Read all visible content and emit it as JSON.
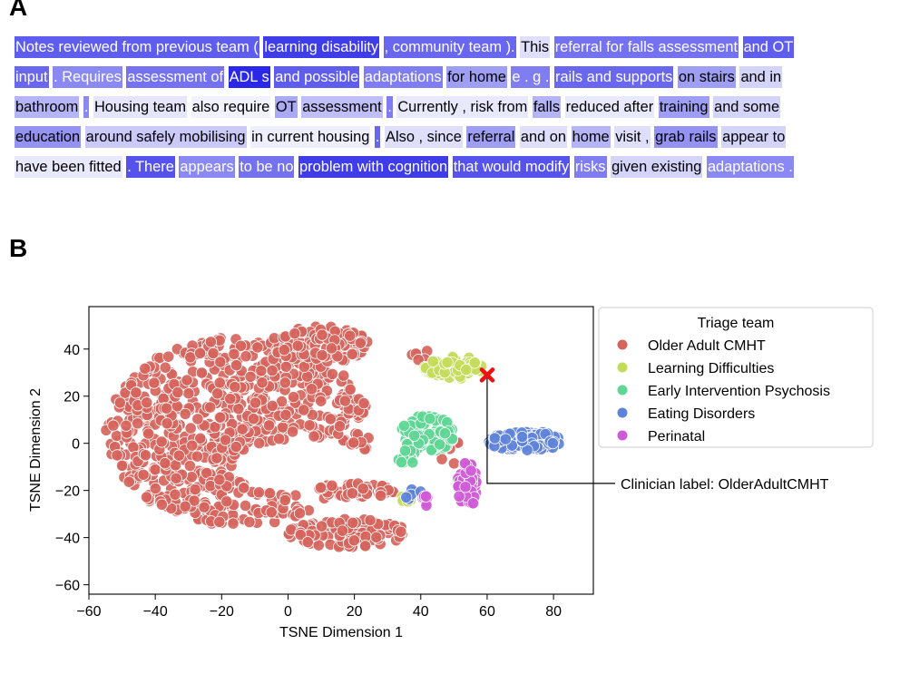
{
  "panel_a": {
    "letter": "A",
    "lines": [
      [
        {
          "t": "Notes reviewed from previous team (",
          "w": 0.75
        },
        {
          "t": "learning disability",
          "w": 0.9
        },
        {
          "t": ", community team ).",
          "w": 0.7
        },
        {
          "t": "This",
          "w": 0.15
        },
        {
          "t": "referral for falls assessment",
          "w": 0.65
        },
        {
          "t": "and OT",
          "w": 0.75
        }
      ],
      [
        {
          "t": "input",
          "w": 0.7
        },
        {
          "t": ". Requires",
          "w": 0.55
        },
        {
          "t": "assessment of",
          "w": 0.65
        },
        {
          "t": "ADL s",
          "w": 1.0
        },
        {
          "t": "and possible",
          "w": 0.75
        },
        {
          "t": "adaptations",
          "w": 0.6
        },
        {
          "t": "for home",
          "w": 0.45
        },
        {
          "t": "e . g .",
          "w": 0.6
        },
        {
          "t": "rails and supports",
          "w": 0.7
        },
        {
          "t": "on stairs",
          "w": 0.45
        },
        {
          "t": "and in",
          "w": 0.2
        }
      ],
      [
        {
          "t": "bathroom",
          "w": 0.35
        },
        {
          "t": ".",
          "w": 0.55
        },
        {
          "t": "Housing team",
          "w": 0.12
        },
        {
          "t": "also require",
          "w": 0.06
        },
        {
          "t": "OT",
          "w": 0.4
        },
        {
          "t": "assessment",
          "w": 0.3
        },
        {
          "t": ".",
          "w": 0.6
        },
        {
          "t": "Currently , risk from",
          "w": 0.1
        },
        {
          "t": "falls",
          "w": 0.35
        },
        {
          "t": "reduced after",
          "w": 0.1
        },
        {
          "t": "training",
          "w": 0.45
        },
        {
          "t": "and some",
          "w": 0.2
        }
      ],
      [
        {
          "t": "education",
          "w": 0.5
        },
        {
          "t": "around safely mobilising",
          "w": 0.25
        },
        {
          "t": "in current housing",
          "w": 0.08
        },
        {
          "t": ".",
          "w": 0.7
        },
        {
          "t": "Also , since",
          "w": 0.15
        },
        {
          "t": "referral",
          "w": 0.45
        },
        {
          "t": "and on",
          "w": 0.15
        },
        {
          "t": "home",
          "w": 0.35
        },
        {
          "t": "visit ,",
          "w": 0.15
        },
        {
          "t": "grab rails",
          "w": 0.5
        },
        {
          "t": "appear to",
          "w": 0.2
        }
      ],
      [
        {
          "t": "have been fitted",
          "w": 0.1
        },
        {
          "t": ". There",
          "w": 0.8
        },
        {
          "t": "appears",
          "w": 0.55
        },
        {
          "t": "to be no",
          "w": 0.65
        },
        {
          "t": "problem with cognition",
          "w": 0.9
        },
        {
          "t": "that would modify",
          "w": 0.8
        },
        {
          "t": "risks",
          "w": 0.6
        },
        {
          "t": "given existing",
          "w": 0.2
        },
        {
          "t": "adaptations .",
          "w": 0.55
        }
      ]
    ]
  },
  "panel_b": {
    "letter": "B"
  },
  "colors": {
    "Older Adult CMHT": "#d6645c",
    "Learning Difficulties": "#c4db5a",
    "Early Intervention Psychosis": "#5ed694",
    "Eating Disorders": "#5f83d9",
    "Perinatal": "#cf5ad7",
    "highlight": "#2a27e8",
    "marker": "#ee1111"
  },
  "chart_data": {
    "type": "scatter",
    "title": "",
    "xlabel": "TSNE Dimension 1",
    "ylabel": "TSNE Dimension 2",
    "xlim": [
      -60,
      92
    ],
    "ylim": [
      -64,
      58
    ],
    "xticks": [
      -60,
      -40,
      -20,
      0,
      20,
      40,
      60,
      80
    ],
    "yticks": [
      -60,
      -40,
      -20,
      0,
      20,
      40
    ],
    "legend": {
      "title": "Triage team",
      "position": "right, outside plot",
      "entries": [
        "Older Adult CMHT",
        "Learning Difficulties",
        "Early Intervention Psychosis",
        "Eating Disorders",
        "Perinatal"
      ]
    },
    "series": [
      {
        "name": "Older Adult CMHT",
        "clusters": [
          {
            "cx": -15,
            "cy": 5,
            "rx": 40,
            "ry": 40,
            "n": 900
          },
          {
            "cx": 10,
            "cy": 42,
            "rx": 15,
            "ry": 8,
            "n": 110
          },
          {
            "cx": 18,
            "cy": -38,
            "rx": 18,
            "ry": 6,
            "n": 110
          },
          {
            "cx": 20,
            "cy": -20,
            "rx": 12,
            "ry": 3,
            "n": 60
          },
          {
            "cx": 40,
            "cy": 38,
            "rx": 3,
            "ry": 3,
            "n": 6
          },
          {
            "cx": 50,
            "cy": -5,
            "rx": 4,
            "ry": 6,
            "n": 6
          }
        ]
      },
      {
        "name": "Learning Difficulties",
        "clusters": [
          {
            "cx": 50,
            "cy": 32,
            "rx": 9,
            "ry": 5,
            "n": 60
          },
          {
            "cx": 35,
            "cy": -22,
            "rx": 3,
            "ry": 3,
            "n": 5
          }
        ]
      },
      {
        "name": "Early Intervention Psychosis",
        "clusters": [
          {
            "cx": 42,
            "cy": 4,
            "rx": 8,
            "ry": 8,
            "n": 110
          },
          {
            "cx": 36,
            "cy": -6,
            "rx": 3,
            "ry": 3,
            "n": 12
          }
        ]
      },
      {
        "name": "Eating Disorders",
        "clusters": [
          {
            "cx": 72,
            "cy": 1,
            "rx": 12,
            "ry": 4,
            "n": 120
          },
          {
            "cx": 38,
            "cy": -22,
            "rx": 3,
            "ry": 3,
            "n": 8
          }
        ]
      },
      {
        "name": "Perinatal",
        "clusters": [
          {
            "cx": 54,
            "cy": -18,
            "rx": 3,
            "ry": 10,
            "n": 60
          },
          {
            "cx": 40,
            "cy": -25,
            "rx": 3,
            "ry": 3,
            "n": 6
          }
        ]
      }
    ],
    "highlight_point": {
      "x": 60,
      "y": 29,
      "marker": "x"
    },
    "annotation": {
      "text": "Clinician label: OlderAdultCMHT",
      "x": 60,
      "y": -17
    }
  }
}
